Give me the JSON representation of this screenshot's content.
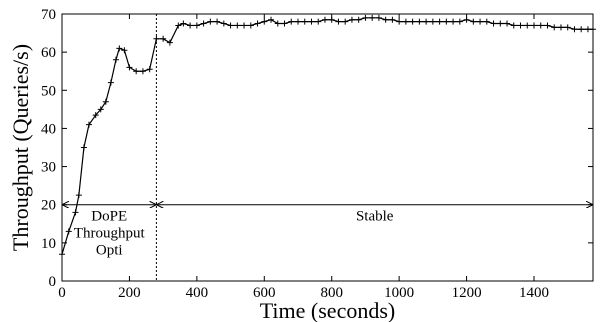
{
  "chart_data": {
    "type": "line",
    "title": "",
    "xlabel": "Time (seconds)",
    "ylabel": "Throughput (Queries/s)",
    "xlim": [
      0,
      1575
    ],
    "ylim": [
      0,
      70
    ],
    "x_ticks": [
      0,
      200,
      400,
      600,
      800,
      1000,
      1200,
      1400
    ],
    "y_ticks": [
      0,
      10,
      20,
      30,
      40,
      50,
      60,
      70
    ],
    "grid": false,
    "legend": "none",
    "series": [
      {
        "values": [
          [
            0,
            7
          ],
          [
            20,
            13
          ],
          [
            40,
            18
          ],
          [
            50,
            22.5
          ],
          [
            65,
            35
          ],
          [
            80,
            41
          ],
          [
            100,
            43.5
          ],
          [
            115,
            45
          ],
          [
            130,
            47
          ],
          [
            145,
            52
          ],
          [
            160,
            58
          ],
          [
            170,
            61
          ],
          [
            185,
            60.5
          ],
          [
            200,
            56
          ],
          [
            220,
            55
          ],
          [
            240,
            55
          ],
          [
            260,
            55.5
          ],
          [
            280,
            63.5
          ],
          [
            300,
            63.5
          ],
          [
            320,
            62.5
          ],
          [
            345,
            67
          ],
          [
            360,
            67.5
          ],
          [
            380,
            67
          ],
          [
            400,
            67
          ],
          [
            420,
            67.5
          ],
          [
            440,
            68
          ],
          [
            460,
            68
          ],
          [
            480,
            67.5
          ],
          [
            500,
            67
          ],
          [
            520,
            67
          ],
          [
            540,
            67
          ],
          [
            560,
            67
          ],
          [
            580,
            67.5
          ],
          [
            600,
            68
          ],
          [
            620,
            68.5
          ],
          [
            640,
            67.5
          ],
          [
            660,
            67.5
          ],
          [
            680,
            68
          ],
          [
            700,
            68
          ],
          [
            720,
            68
          ],
          [
            740,
            68
          ],
          [
            760,
            68
          ],
          [
            780,
            68.5
          ],
          [
            800,
            68.5
          ],
          [
            820,
            68
          ],
          [
            840,
            68
          ],
          [
            860,
            68.5
          ],
          [
            880,
            68.5
          ],
          [
            900,
            69
          ],
          [
            920,
            69
          ],
          [
            940,
            69
          ],
          [
            960,
            68.5
          ],
          [
            980,
            68.5
          ],
          [
            1000,
            68
          ],
          [
            1020,
            68
          ],
          [
            1040,
            68
          ],
          [
            1060,
            68
          ],
          [
            1080,
            68
          ],
          [
            1100,
            68
          ],
          [
            1120,
            68
          ],
          [
            1140,
            68
          ],
          [
            1160,
            68
          ],
          [
            1180,
            68
          ],
          [
            1200,
            68.5
          ],
          [
            1220,
            68
          ],
          [
            1240,
            68
          ],
          [
            1260,
            68
          ],
          [
            1280,
            67.5
          ],
          [
            1300,
            67.5
          ],
          [
            1320,
            67.5
          ],
          [
            1340,
            67
          ],
          [
            1360,
            67
          ],
          [
            1380,
            67
          ],
          [
            1400,
            67
          ],
          [
            1420,
            67
          ],
          [
            1440,
            67
          ],
          [
            1460,
            66.5
          ],
          [
            1480,
            66.5
          ],
          [
            1500,
            66.5
          ],
          [
            1520,
            66
          ],
          [
            1540,
            66
          ],
          [
            1560,
            66
          ],
          [
            1575,
            66
          ]
        ]
      }
    ],
    "phase_boundary_x": 280,
    "phase_arrow_y": 20,
    "phases": [
      {
        "label_lines": [
          "DoPE",
          "Throughput",
          "Opti"
        ],
        "x_start": 0,
        "x_end": 280
      },
      {
        "label_lines": [
          "Stable"
        ],
        "x_start": 280,
        "x_end": 1575
      }
    ]
  }
}
